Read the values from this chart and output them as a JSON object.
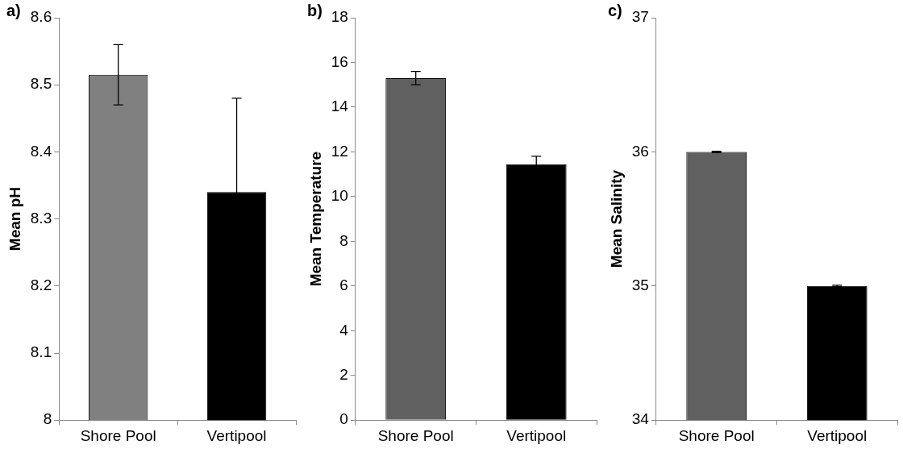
{
  "chart_data": [
    {
      "type": "bar",
      "title": "a)",
      "ylabel": "Mean pH",
      "categories": [
        "Shore Pool",
        "Vertipool"
      ],
      "values": [
        8.515,
        8.34
      ],
      "colors": [
        "#808080",
        "#000000"
      ],
      "errors": [
        0.045,
        0.14
      ],
      "ylim": [
        8,
        8.6
      ],
      "yticks": [
        8,
        8.1,
        8.2,
        8.3,
        8.4,
        8.5,
        8.6
      ],
      "grid": false,
      "legend": false
    },
    {
      "type": "bar",
      "title": "b)",
      "ylabel": "Mean Temperature",
      "categories": [
        "Shore Pool",
        "Vertipool"
      ],
      "values": [
        15.3,
        11.45
      ],
      "colors": [
        "#606060",
        "#000000"
      ],
      "errors": [
        0.3,
        0.35
      ],
      "ylim": [
        0,
        18
      ],
      "yticks": [
        0,
        2,
        4,
        6,
        8,
        10,
        12,
        14,
        16,
        18
      ],
      "grid": false,
      "legend": false
    },
    {
      "type": "bar",
      "title": "c)",
      "ylabel": "Mean Salinity",
      "categories": [
        "Shore Pool",
        "Vertipool"
      ],
      "values": [
        36,
        35
      ],
      "colors": [
        "#606060",
        "#000000"
      ],
      "errors": [
        0.005,
        0.005
      ],
      "ylim": [
        34,
        37
      ],
      "yticks": [
        34,
        35,
        36,
        37
      ],
      "grid": false,
      "legend": false
    }
  ]
}
